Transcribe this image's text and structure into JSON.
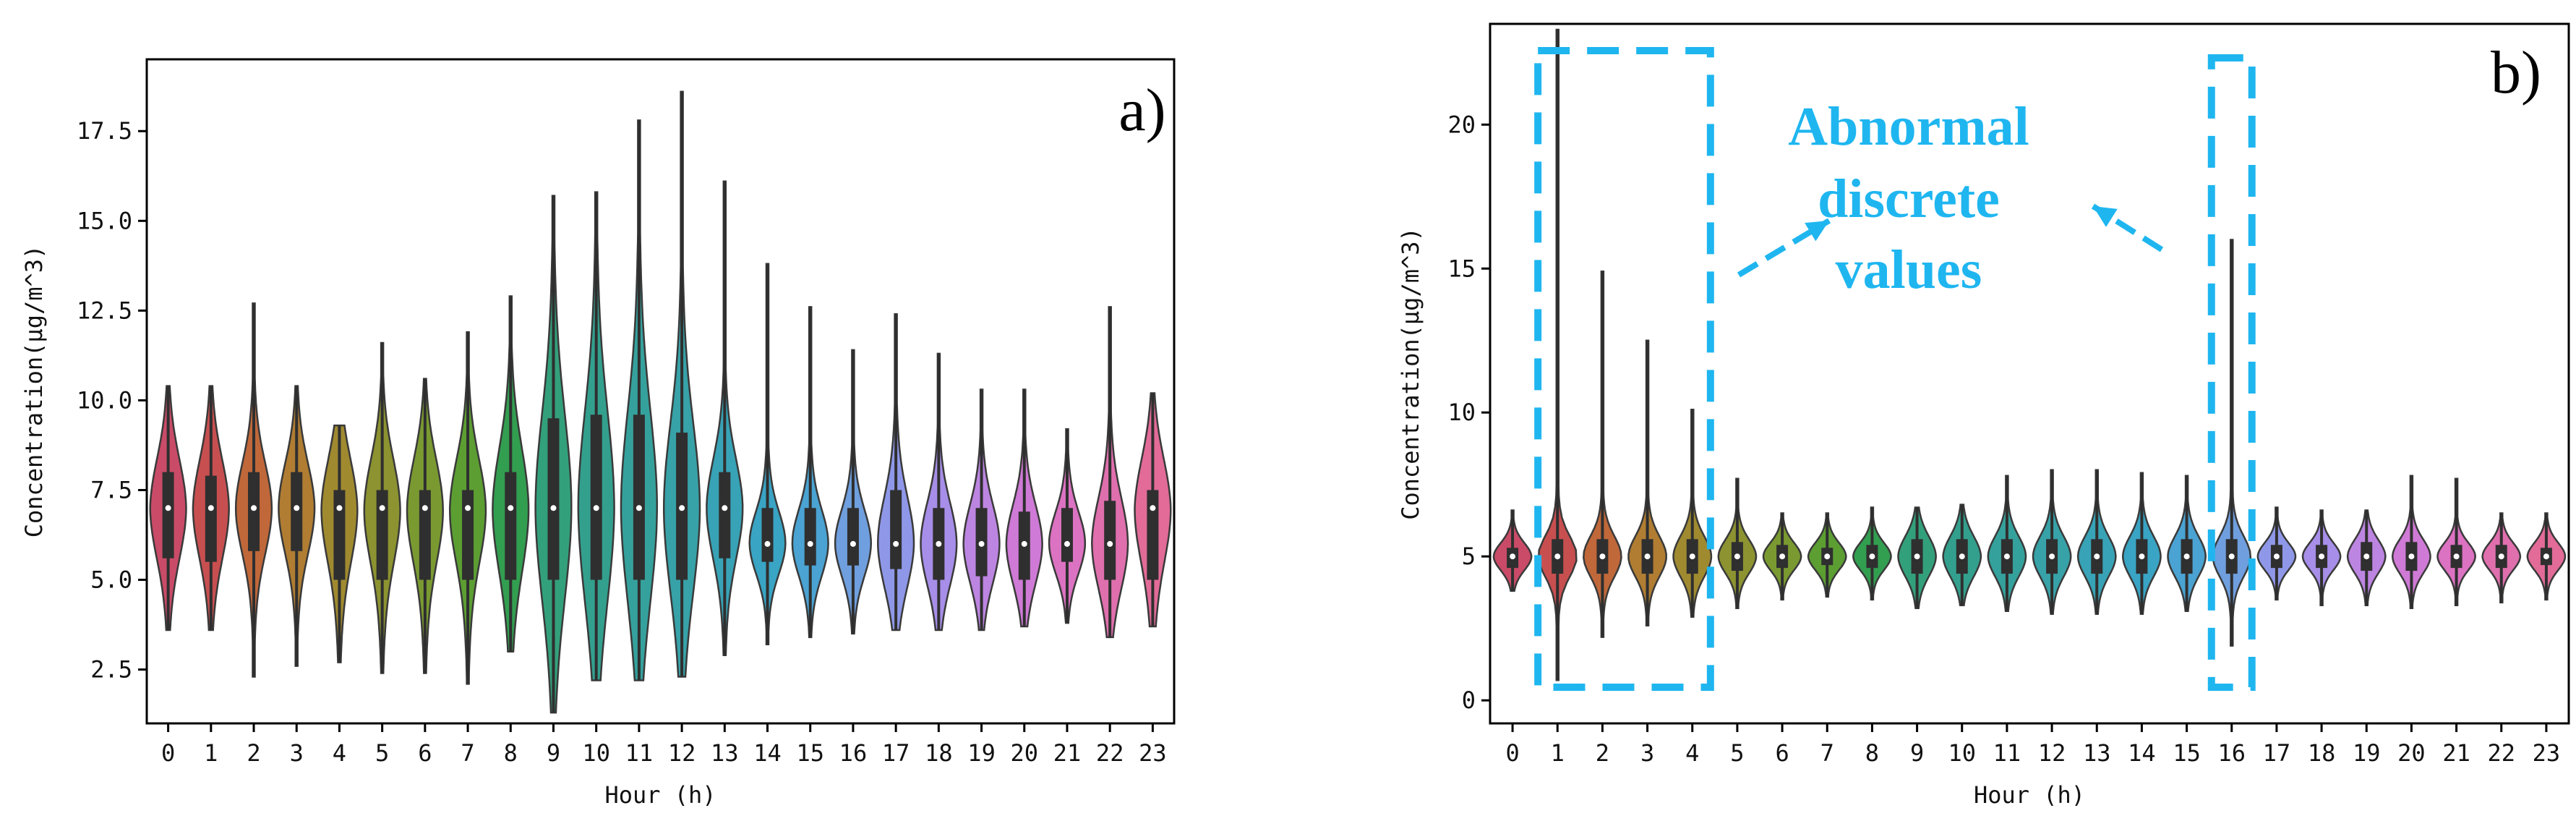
{
  "chart_data": [
    {
      "type": "violin",
      "panel_label": "a)",
      "xlabel": "Hour (h)",
      "ylabel": "Concentration(μg/m^3)",
      "ylim": [
        1.0,
        19.5
      ],
      "yticks": [
        2.5,
        5.0,
        7.5,
        10.0,
        12.5,
        15.0,
        17.5
      ],
      "ytick_labels": [
        "2.5",
        "5.0",
        "7.5",
        "10.0",
        "12.5",
        "15.0",
        "17.5"
      ],
      "categories": [
        "0",
        "1",
        "2",
        "3",
        "4",
        "5",
        "6",
        "7",
        "8",
        "9",
        "10",
        "11",
        "12",
        "13",
        "14",
        "15",
        "16",
        "17",
        "18",
        "19",
        "20",
        "21",
        "22",
        "23"
      ],
      "colors": [
        "#c94b68",
        "#c84f50",
        "#c0683a",
        "#b07d32",
        "#a08a30",
        "#8c9330",
        "#7a9a31",
        "#5c9e32",
        "#329e50",
        "#33a07c",
        "#33a08e",
        "#35a19c",
        "#37a2a8",
        "#38a3b6",
        "#39a4c4",
        "#4aa3d2",
        "#6f9fde",
        "#8f98e8",
        "#a78ee8",
        "#bd85e2",
        "#cf7ad6",
        "#dc72c2",
        "#e06fae",
        "#e26b98"
      ],
      "min": [
        3.6,
        3.6,
        2.3,
        2.6,
        2.7,
        2.4,
        2.4,
        2.1,
        3.0,
        1.3,
        2.2,
        2.2,
        2.3,
        2.9,
        3.2,
        3.4,
        3.5,
        3.6,
        3.6,
        3.6,
        3.7,
        3.8,
        3.4,
        3.7
      ],
      "max": [
        10.4,
        10.4,
        12.7,
        10.4,
        9.3,
        11.6,
        10.6,
        11.9,
        12.9,
        15.7,
        15.8,
        17.8,
        18.6,
        16.1,
        13.8,
        12.6,
        11.4,
        12.4,
        11.3,
        10.3,
        10.3,
        9.2,
        12.6,
        10.2
      ],
      "q1": [
        5.6,
        5.5,
        5.8,
        5.8,
        5.0,
        5.0,
        5.0,
        5.0,
        5.0,
        5.0,
        5.0,
        5.0,
        5.0,
        5.6,
        5.5,
        5.4,
        5.4,
        5.3,
        5.0,
        5.1,
        5.0,
        5.5,
        5.0,
        5.0
      ],
      "q3": [
        8.0,
        7.9,
        8.0,
        8.0,
        7.5,
        7.5,
        7.5,
        7.5,
        8.0,
        9.5,
        9.6,
        9.6,
        9.1,
        8.0,
        7.0,
        7.0,
        7.0,
        7.5,
        7.0,
        7.0,
        6.9,
        7.0,
        7.2,
        7.5
      ],
      "median": [
        7.0,
        7.0,
        7.0,
        7.0,
        7.0,
        7.0,
        7.0,
        7.0,
        7.0,
        7.0,
        7.0,
        7.0,
        7.0,
        7.0,
        6.0,
        6.0,
        6.0,
        6.0,
        6.0,
        6.0,
        6.0,
        6.0,
        6.0,
        7.0
      ]
    },
    {
      "type": "violin",
      "panel_label": "b)",
      "xlabel": "Hour (h)",
      "ylabel": "Concentration(μg/m^3)",
      "ylim": [
        -0.8,
        23.5
      ],
      "yticks": [
        0,
        5,
        10,
        15,
        20
      ],
      "ytick_labels": [
        "0",
        "5",
        "10",
        "15",
        "20"
      ],
      "categories": [
        "0",
        "1",
        "2",
        "3",
        "4",
        "5",
        "6",
        "7",
        "8",
        "9",
        "10",
        "11",
        "12",
        "13",
        "14",
        "15",
        "16",
        "17",
        "18",
        "19",
        "20",
        "21",
        "22",
        "23"
      ],
      "colors": [
        "#c94b68",
        "#c84f50",
        "#c0683a",
        "#b07d32",
        "#a08a30",
        "#8c9330",
        "#7a9a31",
        "#5c9e32",
        "#329e50",
        "#33a07c",
        "#33a08e",
        "#35a19c",
        "#37a2a8",
        "#38a3b6",
        "#39a4c4",
        "#4aa3d2",
        "#6f9fde",
        "#8f98e8",
        "#a78ee8",
        "#bd85e2",
        "#cf7ad6",
        "#dc72c2",
        "#e06fae",
        "#e26b98"
      ],
      "min": [
        3.8,
        0.7,
        2.2,
        2.6,
        2.9,
        3.2,
        3.5,
        3.6,
        3.5,
        3.2,
        3.3,
        3.1,
        3.0,
        3.0,
        3.0,
        3.1,
        1.9,
        3.5,
        3.3,
        3.3,
        3.2,
        3.3,
        3.4,
        3.5
      ],
      "max": [
        6.6,
        23.3,
        14.9,
        12.5,
        10.1,
        7.7,
        6.5,
        6.5,
        6.7,
        6.7,
        6.8,
        7.8,
        8.0,
        8.0,
        7.9,
        7.8,
        16.0,
        6.7,
        6.6,
        6.6,
        7.8,
        7.7,
        6.5,
        6.5
      ],
      "q1": [
        4.6,
        4.4,
        4.4,
        4.4,
        4.4,
        4.5,
        4.6,
        4.7,
        4.6,
        4.4,
        4.4,
        4.4,
        4.4,
        4.4,
        4.4,
        4.4,
        4.4,
        4.6,
        4.6,
        4.5,
        4.5,
        4.6,
        4.6,
        4.7
      ],
      "q3": [
        5.3,
        5.6,
        5.6,
        5.6,
        5.6,
        5.5,
        5.4,
        5.3,
        5.4,
        5.6,
        5.6,
        5.6,
        5.6,
        5.6,
        5.6,
        5.6,
        5.6,
        5.4,
        5.4,
        5.5,
        5.5,
        5.4,
        5.4,
        5.3
      ],
      "median": [
        5,
        5,
        5,
        5,
        5,
        5,
        5,
        5,
        5,
        5,
        5,
        5,
        5,
        5,
        5,
        5,
        5,
        5,
        5,
        5,
        5,
        5,
        5,
        5
      ],
      "annotation": {
        "text_lines": [
          "Abnormal",
          "discrete",
          "values"
        ],
        "color": "#1fb6f0",
        "highlighted_hours": [
          [
            "1",
            "4"
          ],
          [
            "16"
          ]
        ]
      }
    }
  ],
  "colors": {
    "axis": "#000000",
    "violin_edge": "#3a3a3a",
    "box": "#2f2f2f",
    "median_dot": "#ffffff",
    "annotation": "#1fb6f0"
  }
}
